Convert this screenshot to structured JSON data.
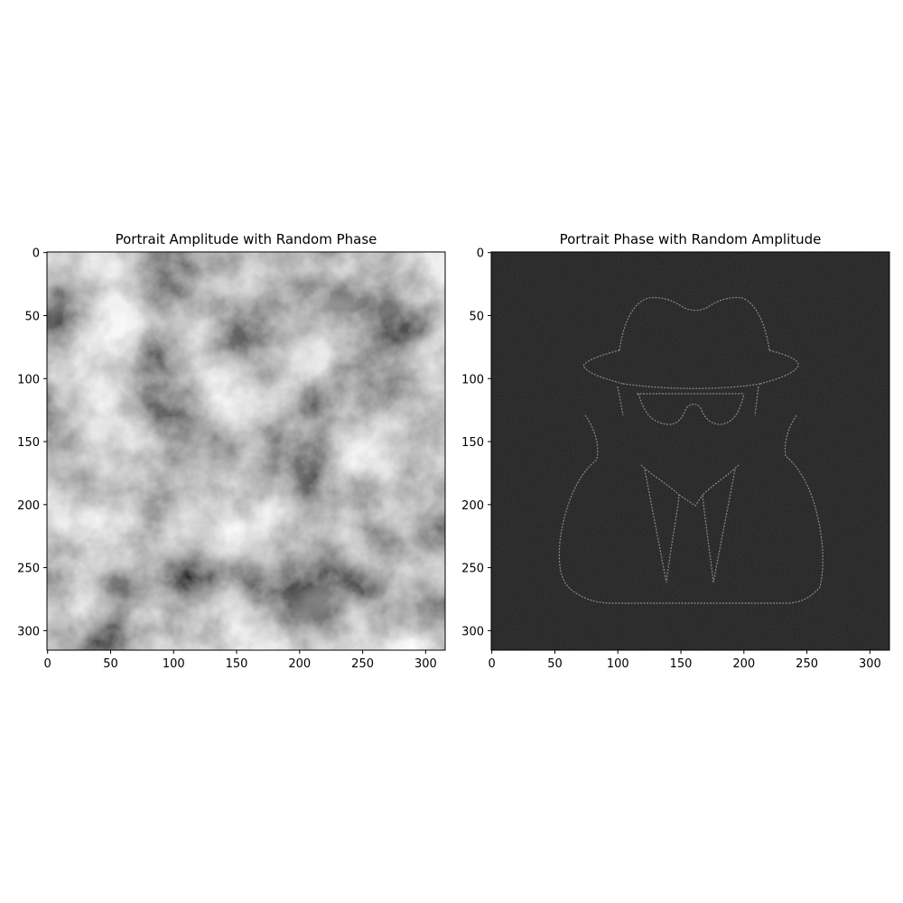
{
  "chart_data": [
    {
      "type": "heatmap",
      "title": "Portrait Amplitude with Random Phase",
      "colormap": "gray",
      "content": "cloud-like random grayscale texture",
      "image_size": [
        316,
        316
      ],
      "xlim": [
        0,
        316
      ],
      "ylim": [
        316,
        0
      ],
      "xticks": [
        0,
        50,
        100,
        150,
        200,
        250,
        300
      ],
      "yticks": [
        0,
        50,
        100,
        150,
        200,
        250,
        300
      ]
    },
    {
      "type": "heatmap",
      "title": "Portrait Phase with Random Amplitude",
      "colormap": "gray",
      "content": "faint outline of an incognito figure (hat, sunglasses, coat) on a black background",
      "image_size": [
        316,
        316
      ],
      "xlim": [
        0,
        316
      ],
      "ylim": [
        316,
        0
      ],
      "xticks": [
        0,
        50,
        100,
        150,
        200,
        250,
        300
      ],
      "yticks": [
        0,
        50,
        100,
        150,
        200,
        250,
        300
      ]
    }
  ]
}
